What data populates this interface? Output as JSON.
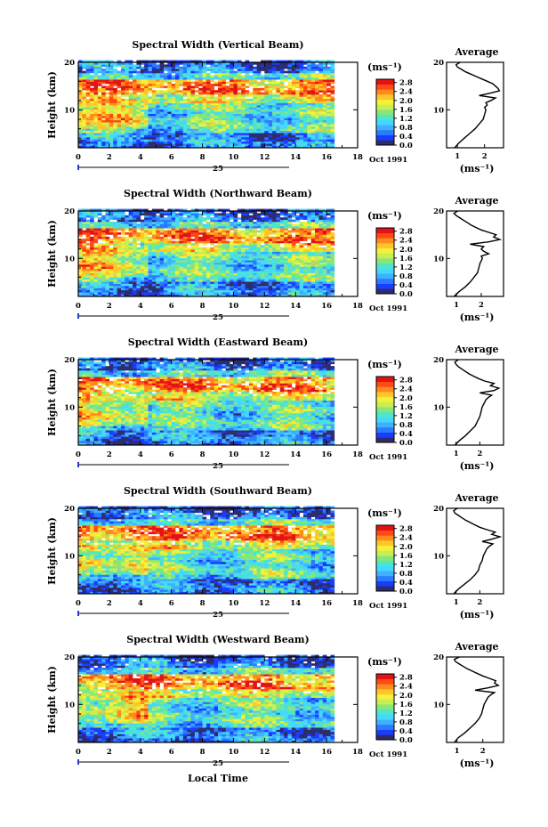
{
  "figure": {
    "xlabel": "Local Time",
    "date_label": "Oct 1991",
    "day_label": "25",
    "ylabel": "Height (km)",
    "colorbar_units": "(ms⁻¹)",
    "average_title": "Average",
    "average_units": "(ms⁻¹)",
    "colorscale": [
      "#2c2c6e",
      "#1a3cff",
      "#2a7bff",
      "#3fb0ff",
      "#45d8ff",
      "#4de6c8",
      "#86e67a",
      "#c8ee52",
      "#f5f03a",
      "#ffc629",
      "#ff8a1e",
      "#ff4a16",
      "#e01414"
    ]
  },
  "chart_data": [
    {
      "type": "heatmap",
      "title": "Spectral Width (Vertical Beam)",
      "xlabel": "Local Time",
      "ylabel": "Height (km)",
      "xlim": [
        0,
        18
      ],
      "ylim": [
        2,
        20
      ],
      "x_ticks": [
        0,
        2,
        4,
        6,
        8,
        10,
        12,
        14,
        16,
        18
      ],
      "y_ticks": [
        10,
        20
      ],
      "colorbar_ticks": [
        "0.0",
        "0.4",
        "0.8",
        "1.2",
        "1.6",
        "2.0",
        "2.4",
        "2.8"
      ],
      "data_end_hour": 16.5,
      "profile": {
        "title": "Average",
        "x_ticks": [
          "1",
          "2"
        ],
        "xlim": [
          0.6,
          2.7
        ],
        "height": [
          2,
          3,
          4,
          5,
          6,
          7,
          8,
          9,
          10,
          10.5,
          11,
          11.5,
          12,
          12.5,
          13,
          13.5,
          14,
          14.5,
          15,
          15.5,
          16,
          16.5,
          17,
          17.5,
          18,
          18.5,
          19,
          19.5,
          20
        ],
        "width": [
          0.9,
          1.05,
          1.25,
          1.45,
          1.65,
          1.8,
          1.95,
          2.0,
          2.05,
          2.0,
          2.1,
          2.05,
          2.25,
          2.4,
          1.8,
          2.2,
          2.55,
          2.5,
          2.4,
          2.3,
          2.1,
          1.9,
          1.7,
          1.5,
          1.3,
          1.15,
          1.0,
          0.95,
          1.1
        ]
      }
    },
    {
      "type": "heatmap",
      "title": "Spectral Width (Northward Beam)",
      "xlabel": "Local Time",
      "ylabel": "Height (km)",
      "xlim": [
        0,
        18
      ],
      "ylim": [
        2,
        20
      ],
      "x_ticks": [
        0,
        2,
        4,
        6,
        8,
        10,
        12,
        14,
        16,
        18
      ],
      "y_ticks": [
        10,
        20
      ],
      "colorbar_ticks": [
        "0.0",
        "0.4",
        "0.8",
        "1.2",
        "1.6",
        "2.0",
        "2.4",
        "2.8"
      ],
      "data_end_hour": 16.5,
      "profile": {
        "title": "Average",
        "x_ticks": [
          "1",
          "2"
        ],
        "xlim": [
          0.6,
          2.9
        ],
        "height": [
          2,
          3,
          4,
          5,
          6,
          7,
          8,
          9,
          10,
          10.5,
          11,
          11.5,
          12,
          12.5,
          13,
          13.5,
          14,
          14.5,
          15,
          15.5,
          16,
          16.5,
          17,
          17.5,
          18,
          18.5,
          19,
          19.5,
          20
        ],
        "width": [
          0.9,
          1.1,
          1.35,
          1.55,
          1.7,
          1.85,
          1.9,
          1.95,
          2.05,
          2.0,
          2.3,
          2.1,
          2.0,
          2.1,
          1.55,
          2.3,
          2.75,
          2.5,
          2.6,
          2.3,
          2.0,
          1.8,
          1.6,
          1.45,
          1.3,
          1.15,
          1.0,
          0.9,
          1.05
        ]
      }
    },
    {
      "type": "heatmap",
      "title": "Spectral Width (Eastward Beam)",
      "xlabel": "Local Time",
      "ylabel": "Height (km)",
      "xlim": [
        0,
        18
      ],
      "ylim": [
        2,
        20
      ],
      "x_ticks": [
        0,
        2,
        4,
        6,
        8,
        10,
        12,
        14,
        16,
        18
      ],
      "y_ticks": [
        10,
        20
      ],
      "colorbar_ticks": [
        "0.0",
        "0.4",
        "0.8",
        "1.2",
        "1.6",
        "2.0",
        "2.4",
        "2.8"
      ],
      "data_end_hour": 16.5,
      "profile": {
        "title": "Average",
        "x_ticks": [
          "1",
          "2"
        ],
        "xlim": [
          0.6,
          3.0
        ],
        "height": [
          2,
          3,
          4,
          5,
          6,
          7,
          8,
          9,
          10,
          10.5,
          11,
          11.5,
          12,
          12.5,
          13,
          13.5,
          14,
          14.5,
          15,
          15.5,
          16,
          16.5,
          17,
          17.5,
          18,
          18.5,
          19,
          19.5,
          20
        ],
        "width": [
          0.95,
          1.15,
          1.4,
          1.6,
          1.8,
          1.9,
          2.0,
          2.05,
          2.1,
          2.15,
          2.2,
          2.25,
          2.35,
          2.5,
          2.0,
          2.6,
          2.8,
          2.45,
          2.6,
          2.2,
          1.95,
          1.75,
          1.55,
          1.4,
          1.25,
          1.1,
          1.0,
          0.95,
          1.1
        ]
      }
    },
    {
      "type": "heatmap",
      "title": "Spectral Width (Southward Beam)",
      "xlabel": "Local Time",
      "ylabel": "Height (km)",
      "xlim": [
        0,
        18
      ],
      "ylim": [
        2,
        20
      ],
      "x_ticks": [
        0,
        2,
        4,
        6,
        8,
        10,
        12,
        14,
        16,
        18
      ],
      "y_ticks": [
        10,
        20
      ],
      "colorbar_ticks": [
        "0.0",
        "0.4",
        "0.8",
        "1.2",
        "1.6",
        "2.0",
        "2.4",
        "2.8"
      ],
      "data_end_hour": 16.5,
      "profile": {
        "title": "Average",
        "x_ticks": [
          "1",
          "2"
        ],
        "xlim": [
          0.6,
          3.0
        ],
        "height": [
          2,
          3,
          4,
          5,
          6,
          7,
          8,
          9,
          10,
          10.5,
          11,
          11.5,
          12,
          12.5,
          13,
          13.5,
          14,
          14.5,
          15,
          15.5,
          16,
          16.5,
          17,
          17.5,
          18,
          18.5,
          19,
          19.5,
          20
        ],
        "width": [
          0.9,
          1.1,
          1.35,
          1.6,
          1.8,
          1.95,
          2.0,
          2.1,
          2.15,
          2.2,
          2.25,
          2.3,
          2.4,
          2.55,
          2.1,
          2.5,
          2.85,
          2.5,
          2.65,
          2.3,
          2.0,
          1.8,
          1.6,
          1.4,
          1.25,
          1.1,
          0.95,
          0.9,
          1.05
        ]
      }
    },
    {
      "type": "heatmap",
      "title": "Spectral Width (Westward Beam)",
      "xlabel": "Local Time",
      "ylabel": "Height (km)",
      "xlim": [
        0,
        18
      ],
      "ylim": [
        2,
        20
      ],
      "x_ticks": [
        0,
        2,
        4,
        6,
        8,
        10,
        12,
        14,
        16,
        18
      ],
      "y_ticks": [
        10,
        20
      ],
      "colorbar_ticks": [
        "0.0",
        "0.4",
        "0.8",
        "1.2",
        "1.6",
        "2.0",
        "2.4",
        "2.8"
      ],
      "data_end_hour": 16.5,
      "profile": {
        "title": "Average",
        "x_ticks": [
          "1",
          "2"
        ],
        "xlim": [
          0.6,
          2.8
        ],
        "height": [
          2,
          3,
          4,
          5,
          6,
          7,
          8,
          9,
          10,
          10.5,
          11,
          11.5,
          12,
          12.5,
          13,
          13.5,
          14,
          14.5,
          15,
          15.5,
          16,
          16.5,
          17,
          17.5,
          18,
          18.5,
          19,
          19.5,
          20
        ],
        "width": [
          0.9,
          1.05,
          1.3,
          1.5,
          1.7,
          1.85,
          1.95,
          2.0,
          2.05,
          2.1,
          2.15,
          2.2,
          2.3,
          2.45,
          1.7,
          2.2,
          2.6,
          2.45,
          2.5,
          2.25,
          2.0,
          1.8,
          1.6,
          1.4,
          1.25,
          1.1,
          0.95,
          0.9,
          1.1
        ]
      }
    }
  ]
}
